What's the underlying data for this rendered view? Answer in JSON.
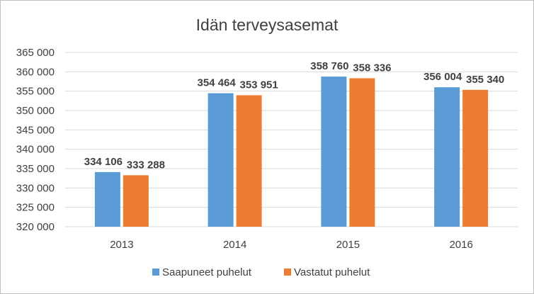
{
  "chart_data": {
    "type": "bar",
    "title": "Idän terveysasemat",
    "categories": [
      "2013",
      "2014",
      "2015",
      "2016"
    ],
    "series": [
      {
        "name": "Saapuneet puhelut",
        "color": "#5b9bd5",
        "values": [
          334106,
          354464,
          358760,
          356004
        ],
        "labels": [
          "334 106",
          "354 464",
          "358 760",
          "356 004"
        ]
      },
      {
        "name": "Vastatut puhelut",
        "color": "#ed7d31",
        "values": [
          333288,
          353951,
          358336,
          355340
        ],
        "labels": [
          "333 288",
          "353 951",
          "358 336",
          "355 340"
        ]
      }
    ],
    "ylim": [
      320000,
      365000
    ],
    "yticks": [
      320000,
      325000,
      330000,
      335000,
      340000,
      345000,
      350000,
      355000,
      360000,
      365000
    ],
    "ytick_labels": [
      "320 000",
      "325 000",
      "330 000",
      "335 000",
      "340 000",
      "345 000",
      "350 000",
      "355 000",
      "360 000",
      "365 000"
    ],
    "grid": true,
    "legend_position": "bottom",
    "gridline_color": "#d9d9d9"
  }
}
